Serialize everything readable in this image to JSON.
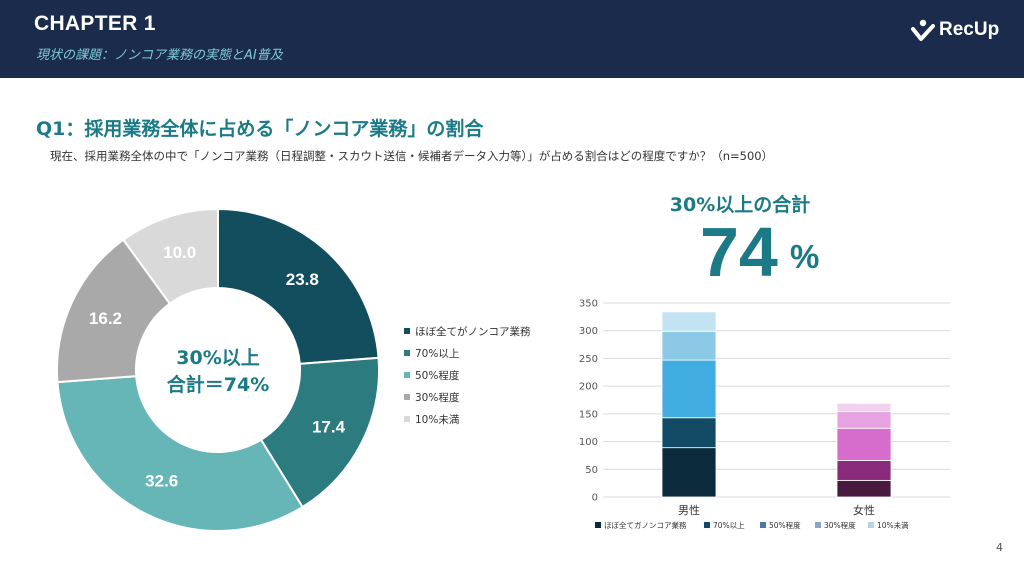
{
  "header": {
    "chapter": "CHAPTER 1",
    "subtitle": "現状の課題：ノンコア業務の実態とAI普及",
    "logo_text": "RecUp"
  },
  "question": {
    "title": "Q1：採用業務全体に占める「ノンコア業務」の割合",
    "description": "現在、採用業務全体の中で「ノンコア業務（日程調整・スカウト送信・候補者データ入力等）」が占める割合はどの程度ですか？（n=500）"
  },
  "summary": {
    "label": "30%以上の合計",
    "value": "74",
    "unit": "%"
  },
  "page_number": "4",
  "chart_data": [
    {
      "type": "pie",
      "variant": "donut",
      "center_text": [
        "30%以上",
        "合計＝74%"
      ],
      "labels": [
        "ほぼ全てがノンコア業務",
        "70%以上",
        "50%程度",
        "30%程度",
        "10%未満"
      ],
      "values": [
        23.8,
        17.4,
        32.6,
        16.2,
        10.0
      ],
      "value_labels": [
        "23.8",
        "17.4",
        "32.6",
        "16.2",
        "10.0"
      ],
      "colors": [
        "#124e5e",
        "#2c7b7f",
        "#67b6b7",
        "#a9a9a9",
        "#d9d9d9"
      ],
      "legend_position": "right"
    },
    {
      "type": "bar",
      "stacked": true,
      "categories": [
        "男性",
        "女性"
      ],
      "series": [
        {
          "name": "ほぼ全てガノンコア業務",
          "values": [
            89,
            30
          ],
          "colors": [
            "#0b2a3c",
            "#4a1940"
          ]
        },
        {
          "name": "70%以上",
          "values": [
            54,
            36
          ],
          "colors": [
            "#124964",
            "#8a2a7a"
          ]
        },
        {
          "name": "50%程度",
          "values": [
            104,
            58
          ],
          "colors": [
            "#42ade0",
            "#d66ccc"
          ]
        },
        {
          "name": "30%程度",
          "values": [
            52,
            30
          ],
          "colors": [
            "#8bc9e6",
            "#e7a3e0"
          ]
        },
        {
          "name": "10%未満",
          "values": [
            35,
            15
          ],
          "colors": [
            "#c3e3f2",
            "#f1d1ee"
          ]
        }
      ],
      "legend_colors": [
        "#0b2a3c",
        "#124964",
        "#4a78a8",
        "#86a8c8",
        "#b4d4e6"
      ],
      "ylim": [
        0,
        350
      ],
      "yticks": [
        "0",
        "50",
        "100",
        "150",
        "200",
        "250",
        "300",
        "350"
      ],
      "grid": true,
      "legend_position": "bottom"
    }
  ]
}
